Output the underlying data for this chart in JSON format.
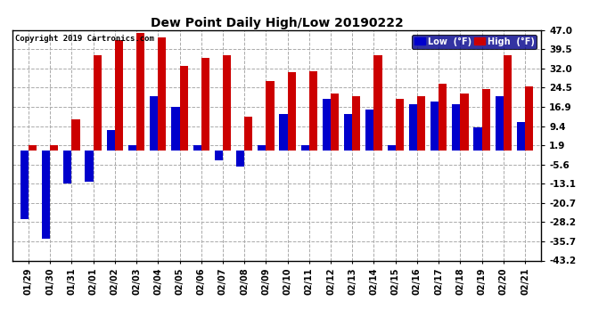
{
  "title": "Dew Point Daily High/Low 20190222",
  "copyright": "Copyright 2019 Cartronics.com",
  "yticks": [
    47.0,
    39.5,
    32.0,
    24.5,
    16.9,
    9.4,
    1.9,
    -5.6,
    -13.1,
    -20.7,
    -28.2,
    -35.7,
    -43.2
  ],
  "ylim": [
    -43.2,
    47.0
  ],
  "dates": [
    "01/29",
    "01/30",
    "01/31",
    "02/01",
    "02/02",
    "02/03",
    "02/04",
    "02/05",
    "02/06",
    "02/07",
    "02/08",
    "02/09",
    "02/10",
    "02/11",
    "02/12",
    "02/13",
    "02/14",
    "02/15",
    "02/16",
    "02/17",
    "02/18",
    "02/19",
    "02/20",
    "02/21"
  ],
  "high": [
    1.9,
    1.9,
    12.0,
    37.0,
    43.0,
    46.0,
    44.0,
    33.0,
    36.0,
    37.0,
    13.0,
    27.0,
    30.5,
    31.0,
    22.0,
    21.0,
    37.0,
    20.0,
    21.0,
    26.0,
    22.0,
    24.0,
    37.0,
    25.0
  ],
  "low": [
    -27.0,
    -34.5,
    -13.0,
    -12.5,
    8.0,
    1.9,
    21.0,
    17.0,
    1.9,
    -4.0,
    -6.5,
    2.0,
    14.0,
    1.9,
    20.0,
    14.0,
    16.0,
    2.0,
    18.0,
    19.0,
    18.0,
    9.0,
    21.0,
    11.0
  ],
  "low_color": "#0000cc",
  "high_color": "#cc0000",
  "bg_color": "#ffffff",
  "grid_color": "#aaaaaa",
  "bar_width": 0.38,
  "legend_low_label": "Low  (°F)",
  "legend_high_label": "High  (°F)"
}
